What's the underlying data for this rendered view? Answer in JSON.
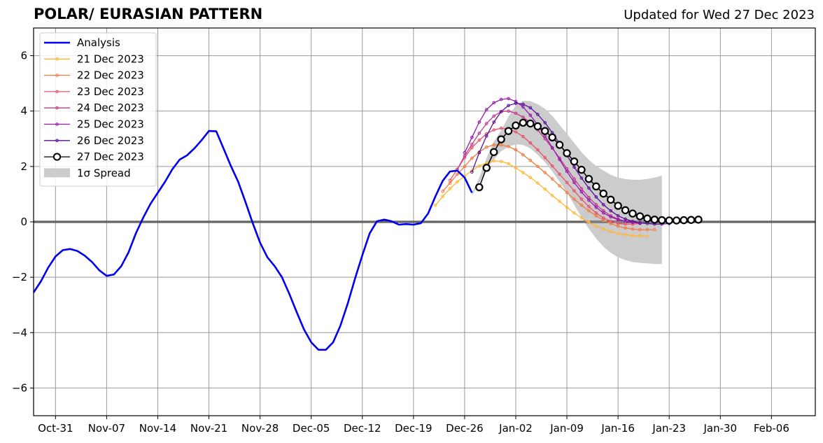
{
  "header": {
    "title": "POLAR/ EURASIAN  PATTERN",
    "subtitle": "Updated for Wed 27 Dec 2023"
  },
  "chart_data": {
    "type": "line",
    "title": "POLAR/ EURASIAN  PATTERN",
    "xlabel": "",
    "ylabel": "",
    "x_axis": {
      "type": "date",
      "range": [
        "2023-10-28",
        "2024-02-12"
      ]
    },
    "ylim": [
      -7,
      7
    ],
    "yticks": [
      -6,
      -4,
      -2,
      0,
      2,
      4,
      6
    ],
    "ytick_labels": [
      "−6",
      "−4",
      "−2",
      "0",
      "2",
      "4",
      "6"
    ],
    "xticks": [
      "2023-10-31",
      "2023-11-07",
      "2023-11-14",
      "2023-11-21",
      "2023-11-28",
      "2023-12-05",
      "2023-12-12",
      "2023-12-19",
      "2023-12-26",
      "2024-01-02",
      "2024-01-09",
      "2024-01-16",
      "2024-01-23",
      "2024-01-30",
      "2024-02-06"
    ],
    "xtick_labels": [
      "Oct-31",
      "Nov-07",
      "Nov-14",
      "Nov-21",
      "Nov-28",
      "Dec-05",
      "Dec-12",
      "Dec-19",
      "Dec-26",
      "Jan-02",
      "Jan-09",
      "Jan-16",
      "Jan-23",
      "Jan-30",
      "Feb-06"
    ],
    "grid": true,
    "zero_line": true,
    "legend_position": "top-left",
    "analysis": {
      "name": "Analysis",
      "color": "#0000ee",
      "start": "2023-10-28",
      "values": [
        -2.55,
        -2.15,
        -1.65,
        -1.25,
        -1.02,
        -0.98,
        -1.05,
        -1.22,
        -1.45,
        -1.75,
        -1.95,
        -1.9,
        -1.6,
        -1.1,
        -0.42,
        0.15,
        0.65,
        1.05,
        1.45,
        1.9,
        2.25,
        2.4,
        2.65,
        2.95,
        3.28,
        3.27,
        2.65,
        2.02,
        1.45,
        0.72,
        -0.05,
        -0.75,
        -1.28,
        -1.6,
        -2.0,
        -2.6,
        -3.25,
        -3.88,
        -4.35,
        -4.62,
        -4.62,
        -4.35,
        -3.75,
        -2.95,
        -2.05,
        -1.2,
        -0.42,
        0.02,
        0.08,
        0.02,
        -0.1,
        -0.08,
        -0.1,
        -0.05,
        0.3,
        0.92,
        1.48,
        1.82,
        1.85,
        1.6,
        1.05
      ]
    },
    "spread": {
      "name": "1σ Spread",
      "color": "#cccccc",
      "start": "2023-12-27",
      "upper": [
        1.02,
        1.6,
        2.3,
        2.9,
        3.3,
        3.8,
        4.2,
        4.38,
        4.36,
        4.25,
        4.08,
        3.82,
        3.5,
        3.18,
        2.85,
        2.52,
        2.24,
        2.02,
        1.85,
        1.7,
        1.6,
        1.55,
        1.52,
        1.52,
        1.55,
        1.6,
        1.67
      ],
      "lower": [
        0.95,
        1.4,
        1.9,
        2.25,
        2.55,
        2.72,
        2.8,
        2.78,
        2.65,
        2.42,
        2.15,
        1.82,
        1.45,
        1.05,
        0.62,
        0.15,
        -0.25,
        -0.6,
        -0.9,
        -1.12,
        -1.28,
        -1.38,
        -1.45,
        -1.48,
        -1.5,
        -1.52,
        -1.52
      ]
    },
    "series": [
      {
        "name": "21 Dec 2023",
        "color": "#ffb733",
        "start": "2023-12-22",
        "values": [
          0.6,
          0.92,
          1.2,
          1.45,
          1.65,
          1.85,
          2.02,
          2.12,
          2.2,
          2.18,
          2.1,
          1.95,
          1.78,
          1.6,
          1.4,
          1.18,
          0.95,
          0.74,
          0.52,
          0.32,
          0.14,
          -0.02,
          -0.16,
          -0.26,
          -0.35,
          -0.42,
          -0.46,
          -0.5,
          -0.5,
          -0.52
        ]
      },
      {
        "name": "22 Dec 2023",
        "color": "#f57a3e",
        "start": "2023-12-23",
        "values": [
          1.1,
          1.4,
          1.72,
          2.0,
          2.3,
          2.52,
          2.7,
          2.78,
          2.78,
          2.72,
          2.6,
          2.42,
          2.22,
          2.0,
          1.78,
          1.55,
          1.3,
          1.06,
          0.82,
          0.6,
          0.4,
          0.22,
          0.06,
          -0.06,
          -0.16,
          -0.22,
          -0.26,
          -0.28,
          -0.28,
          -0.28
        ]
      },
      {
        "name": "23 Dec 2023",
        "color": "#e8506a",
        "start": "2023-12-24",
        "values": [
          1.5,
          1.9,
          2.32,
          2.68,
          2.95,
          3.18,
          3.32,
          3.38,
          3.35,
          3.25,
          3.08,
          2.85,
          2.6,
          2.32,
          2.02,
          1.72,
          1.42,
          1.12,
          0.82,
          0.55,
          0.32,
          0.14,
          0.02,
          -0.06,
          -0.08,
          -0.08,
          -0.06
        ]
      },
      {
        "name": "24 Dec 2023",
        "color": "#c23b8e",
        "start": "2023-12-25",
        "values": [
          1.9,
          2.38,
          2.8,
          3.2,
          3.55,
          3.82,
          3.98,
          4.0,
          3.92,
          3.78,
          3.58,
          3.32,
          3.0,
          2.66,
          2.3,
          1.92,
          1.55,
          1.2,
          0.88,
          0.62,
          0.4,
          0.22,
          0.1,
          0.02,
          -0.02,
          -0.04
        ]
      },
      {
        "name": "25 Dec 2023",
        "color": "#9918b0",
        "start": "2023-12-26",
        "values": [
          2.5,
          3.05,
          3.6,
          4.05,
          4.3,
          4.42,
          4.45,
          4.35,
          4.15,
          3.85,
          3.5,
          3.1,
          2.68,
          2.25,
          1.82,
          1.42,
          1.08,
          0.78,
          0.52,
          0.32,
          0.18,
          0.08,
          0.02,
          -0.02,
          -0.05
        ]
      },
      {
        "name": "26 Dec 2023",
        "color": "#5a0e9a",
        "start": "2023-12-27",
        "values": [
          1.8,
          2.5,
          3.1,
          3.6,
          3.98,
          4.2,
          4.28,
          4.25,
          4.12,
          3.88,
          3.58,
          3.22,
          2.82,
          2.4,
          1.98,
          1.58,
          1.22,
          0.9,
          0.62,
          0.4,
          0.22,
          0.1,
          0.02,
          -0.04,
          -0.06,
          -0.08,
          -0.08,
          -0.06
        ]
      },
      {
        "name": "27 Dec 2023",
        "color": "#000000",
        "start": "2023-12-28",
        "marker": "circle",
        "values": [
          1.25,
          1.95,
          2.52,
          2.98,
          3.28,
          3.48,
          3.58,
          3.55,
          3.45,
          3.28,
          3.05,
          2.78,
          2.48,
          2.18,
          1.88,
          1.55,
          1.28,
          1.02,
          0.8,
          0.58,
          0.42,
          0.3,
          0.2,
          0.12,
          0.08,
          0.06,
          0.05,
          0.05,
          0.06,
          0.07,
          0.08
        ]
      }
    ]
  }
}
